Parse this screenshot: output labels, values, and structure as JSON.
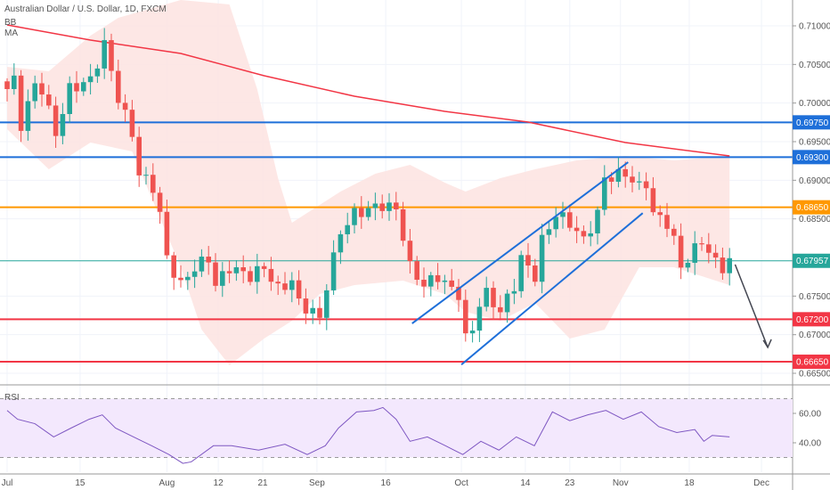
{
  "header": {
    "title": "Australian Dollar / U.S. Dollar, 1D, FXCM",
    "ind1": "BB",
    "ind2": "MA",
    "rsi_label": "RSI"
  },
  "chart_data": {
    "type": "candlestick",
    "title": "Australian Dollar / U.S. Dollar, 1D, FXCM",
    "ylim": [
      0.6635,
      0.7115
    ],
    "yticks": [
      "0.71000",
      "0.70500",
      "0.70000",
      "0.69500",
      "0.69000",
      "0.68500",
      "0.67500",
      "0.67000",
      "0.66500"
    ],
    "ytick_values": [
      0.71,
      0.705,
      0.7,
      0.695,
      0.69,
      0.685,
      0.675,
      0.67,
      0.665
    ],
    "xticks": [
      {
        "label": "Jul",
        "i": 0
      },
      {
        "label": "15",
        "i": 10.5
      },
      {
        "label": "Aug",
        "i": 23
      },
      {
        "label": "12",
        "i": 30.4
      },
      {
        "label": "21",
        "i": 36.8
      },
      {
        "label": "Sep",
        "i": 44.6
      },
      {
        "label": "16",
        "i": 54.5
      },
      {
        "label": "Oct",
        "i": 65.4
      },
      {
        "label": "14",
        "i": 74.6
      },
      {
        "label": "23",
        "i": 81
      },
      {
        "label": "Nov",
        "i": 88.3
      },
      {
        "label": "18",
        "i": 98.2
      },
      {
        "label": "Dec",
        "i": 108.6
      }
    ],
    "close_keyframes": [
      [
        0,
        0.70181
      ],
      [
        1,
        0.70296
      ],
      [
        2,
        0.69719
      ],
      [
        4,
        0.70238
      ],
      [
        5,
        0.70181
      ],
      [
        7,
        0.69604
      ],
      [
        9,
        0.70181
      ],
      [
        12,
        0.70296
      ],
      [
        14,
        0.70758
      ],
      [
        15,
        0.70412
      ],
      [
        16,
        0.70065
      ],
      [
        18,
        0.69604
      ],
      [
        19,
        0.69085
      ],
      [
        21,
        0.68912
      ],
      [
        22,
        0.68565
      ],
      [
        23,
        0.67989
      ],
      [
        25,
        0.67642
      ],
      [
        27,
        0.67873
      ],
      [
        29,
        0.67989
      ],
      [
        30,
        0.67642
      ],
      [
        32,
        0.67873
      ],
      [
        35,
        0.67758
      ],
      [
        37,
        0.67873
      ],
      [
        39,
        0.67585
      ],
      [
        41,
        0.677
      ],
      [
        42,
        0.67412
      ],
      [
        44,
        0.67296
      ],
      [
        45,
        0.67204
      ],
      [
        46,
        0.67642
      ],
      [
        47,
        0.67989
      ],
      [
        48,
        0.68335
      ],
      [
        50,
        0.68565
      ],
      [
        52,
        0.68623
      ],
      [
        54,
        0.68681
      ],
      [
        56,
        0.68623
      ],
      [
        57,
        0.68277
      ],
      [
        58,
        0.67873
      ],
      [
        60,
        0.67642
      ],
      [
        62,
        0.67758
      ],
      [
        64,
        0.67585
      ],
      [
        65,
        0.67527
      ],
      [
        66,
        0.6695
      ],
      [
        67,
        0.67066
      ],
      [
        68,
        0.67412
      ],
      [
        69,
        0.67527
      ],
      [
        71,
        0.67296
      ],
      [
        73,
        0.67642
      ],
      [
        74,
        0.67989
      ],
      [
        76,
        0.67758
      ],
      [
        77,
        0.68219
      ],
      [
        79,
        0.68565
      ],
      [
        81,
        0.6845
      ],
      [
        83,
        0.68219
      ],
      [
        85,
        0.68565
      ],
      [
        86,
        0.69027
      ],
      [
        89,
        0.69085
      ],
      [
        91,
        0.68912
      ],
      [
        92,
        0.68969
      ],
      [
        93,
        0.68565
      ],
      [
        95,
        0.6845
      ],
      [
        96,
        0.68219
      ],
      [
        97,
        0.67873
      ],
      [
        99,
        0.68104
      ],
      [
        100,
        0.68219
      ],
      [
        102,
        0.67931
      ],
      [
        103,
        0.67873
      ],
      [
        104,
        0.67957
      ]
    ],
    "ma": [
      [
        0,
        0.71012
      ],
      [
        12,
        0.70815
      ],
      [
        25,
        0.70642
      ],
      [
        37,
        0.70354
      ],
      [
        50,
        0.70088
      ],
      [
        63,
        0.69892
      ],
      [
        75,
        0.69754
      ],
      [
        89,
        0.69488
      ],
      [
        104,
        0.69315
      ]
    ],
    "bb_upper": [
      [
        0,
        0.70469
      ],
      [
        6,
        0.70412
      ],
      [
        12,
        0.70873
      ],
      [
        16,
        0.71104
      ],
      [
        25,
        0.71335
      ],
      [
        32,
        0.71277
      ],
      [
        36,
        0.70181
      ],
      [
        39,
        0.69027
      ],
      [
        41,
        0.6845
      ],
      [
        48,
        0.68854
      ],
      [
        53,
        0.69085
      ],
      [
        58,
        0.692
      ],
      [
        63,
        0.68969
      ],
      [
        66,
        0.68854
      ],
      [
        71,
        0.69027
      ],
      [
        76,
        0.69142
      ],
      [
        82,
        0.69258
      ],
      [
        89,
        0.69315
      ],
      [
        96,
        0.69258
      ],
      [
        104,
        0.69315
      ]
    ],
    "bb_lower": [
      [
        0,
        0.69661
      ],
      [
        6,
        0.69142
      ],
      [
        12,
        0.69488
      ],
      [
        18,
        0.69373
      ],
      [
        25,
        0.67873
      ],
      [
        28,
        0.67065
      ],
      [
        32,
        0.66604
      ],
      [
        37,
        0.6695
      ],
      [
        41,
        0.6718
      ],
      [
        45,
        0.67527
      ],
      [
        50,
        0.67642
      ],
      [
        57,
        0.677
      ],
      [
        63,
        0.67527
      ],
      [
        66,
        0.67296
      ],
      [
        71,
        0.6718
      ],
      [
        76,
        0.67412
      ],
      [
        81,
        0.6695
      ],
      [
        86,
        0.67065
      ],
      [
        91,
        0.67873
      ],
      [
        96,
        0.67873
      ],
      [
        104,
        0.67642
      ]
    ],
    "levels": [
      {
        "price": 0.6975,
        "label": "0.69750",
        "color": "#1e6fd9"
      },
      {
        "price": 0.693,
        "label": "0.69300",
        "color": "#1e6fd9"
      },
      {
        "price": 0.6865,
        "label": "0.68650",
        "color": "#ff9800"
      },
      {
        "price": 0.67957,
        "label": "0.67957",
        "color": "#26a69a"
      },
      {
        "price": 0.672,
        "label": "0.67200",
        "color": "#f23645"
      },
      {
        "price": 0.6665,
        "label": "0.66650",
        "color": "#f23645"
      }
    ],
    "channel": [
      [
        [
          65.4,
          0.66613
        ],
        [
          91.5,
          0.68575
        ]
      ],
      [
        [
          58.3,
          0.67145
        ],
        [
          89.4,
          0.69234
        ]
      ]
    ],
    "arrow": [
      [
        104.8,
        0.67909
      ],
      [
        109.5,
        0.66836
      ]
    ],
    "rsi": {
      "ylim": [
        20,
        80
      ],
      "ticks": [
        "60.00",
        "40.00"
      ],
      "tick_values": [
        60,
        40
      ],
      "band": [
        30,
        70
      ],
      "values": [
        [
          0,
          62
        ],
        [
          1.5,
          56
        ],
        [
          4,
          53
        ],
        [
          6.7,
          44
        ],
        [
          9.2,
          50
        ],
        [
          11.8,
          56
        ],
        [
          13.7,
          59
        ],
        [
          15.6,
          50
        ],
        [
          18.2,
          44
        ],
        [
          20.8,
          38
        ],
        [
          23.3,
          32
        ],
        [
          25.3,
          26
        ],
        [
          26.5,
          27
        ],
        [
          29.7,
          38
        ],
        [
          32.3,
          38
        ],
        [
          36.2,
          35
        ],
        [
          40,
          39
        ],
        [
          43.2,
          32
        ],
        [
          45.8,
          38
        ],
        [
          47.7,
          50
        ],
        [
          50.3,
          61
        ],
        [
          52.8,
          62
        ],
        [
          54.1,
          64
        ],
        [
          56,
          56
        ],
        [
          58,
          41
        ],
        [
          60.5,
          44
        ],
        [
          63.1,
          38
        ],
        [
          65.6,
          32
        ],
        [
          68.2,
          41
        ],
        [
          70.8,
          35
        ],
        [
          73.3,
          44
        ],
        [
          75.9,
          38
        ],
        [
          78.5,
          61
        ],
        [
          81,
          55
        ],
        [
          83.6,
          59
        ],
        [
          86.2,
          62
        ],
        [
          88.7,
          56
        ],
        [
          91.3,
          61
        ],
        [
          93.8,
          51
        ],
        [
          96.4,
          47
        ],
        [
          99,
          49
        ],
        [
          100.3,
          41
        ],
        [
          101.5,
          45
        ],
        [
          104,
          44
        ]
      ]
    }
  },
  "colors": {
    "up": "#26a69a",
    "down": "#ef5350",
    "ma": "#f23645",
    "bb_fill": "#fde3e1",
    "rsi": "#7e57c2",
    "rsi_fill": "#f3e8fd"
  }
}
